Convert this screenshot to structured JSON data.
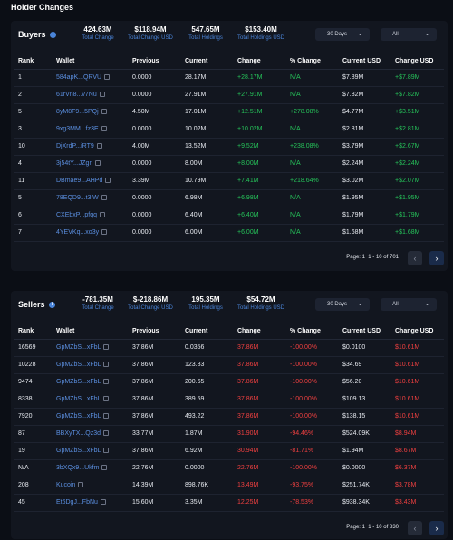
{
  "page_title": "Holder Changes",
  "columns": [
    "Rank",
    "Wallet",
    "Previous",
    "Current",
    "Change",
    "% Change",
    "Current USD",
    "Change USD"
  ],
  "icons": {
    "info": "info-icon",
    "copy": "copy-icon",
    "dropdown": "chevron-down-icon",
    "prev": "chevron-left-icon",
    "next": "chevron-right-icon"
  },
  "colors": {
    "positive": "#26c35a",
    "negative": "#f04040",
    "link": "#5b8fe0",
    "accent": "#4a84d8"
  },
  "buyers": {
    "title": "Buyers",
    "stats": [
      {
        "value": "424.63M",
        "label": "Total Change"
      },
      {
        "value": "$118.94M",
        "label": "Total Change USD"
      },
      {
        "value": "547.65M",
        "label": "Total Holdings"
      },
      {
        "value": "$153.40M",
        "label": "Total Holdings USD"
      }
    ],
    "period": "30 Days",
    "filter": "All",
    "rows": [
      {
        "rank": "1",
        "wallet": "584apK...QRVU",
        "previous": "0.0000",
        "current": "28.17M",
        "change": "+28.17M",
        "pct": "N/A",
        "usd": "$7.89M",
        "change_usd": "+$7.89M"
      },
      {
        "rank": "2",
        "wallet": "61rVn8...v7Nu",
        "previous": "0.0000",
        "current": "27.91M",
        "change": "+27.91M",
        "pct": "N/A",
        "usd": "$7.82M",
        "change_usd": "+$7.82M"
      },
      {
        "rank": "5",
        "wallet": "8yM8F9...5PQj",
        "previous": "4.50M",
        "current": "17.01M",
        "change": "+12.51M",
        "pct": "+278.08%",
        "usd": "$4.77M",
        "change_usd": "+$3.51M"
      },
      {
        "rank": "3",
        "wallet": "9xg3MM...fz3E",
        "previous": "0.0000",
        "current": "10.02M",
        "change": "+10.02M",
        "pct": "N/A",
        "usd": "$2.81M",
        "change_usd": "+$2.81M"
      },
      {
        "rank": "10",
        "wallet": "DjXrdP...iRT9",
        "previous": "4.00M",
        "current": "13.52M",
        "change": "+9.52M",
        "pct": "+238.08%",
        "usd": "$3.79M",
        "change_usd": "+$2.67M"
      },
      {
        "rank": "4",
        "wallet": "3j54tY...JZgn",
        "previous": "0.0000",
        "current": "8.00M",
        "change": "+8.00M",
        "pct": "N/A",
        "usd": "$2.24M",
        "change_usd": "+$2.24M"
      },
      {
        "rank": "11",
        "wallet": "DBmae9...AHPd",
        "previous": "3.39M",
        "current": "10.79M",
        "change": "+7.41M",
        "pct": "+218.64%",
        "usd": "$3.02M",
        "change_usd": "+$2.07M"
      },
      {
        "rank": "5",
        "wallet": "78EQD9...t3iW",
        "previous": "0.0000",
        "current": "6.98M",
        "change": "+6.98M",
        "pct": "N/A",
        "usd": "$1.95M",
        "change_usd": "+$1.95M"
      },
      {
        "rank": "6",
        "wallet": "CXEbxP...pfqq",
        "previous": "0.0000",
        "current": "6.40M",
        "change": "+6.40M",
        "pct": "N/A",
        "usd": "$1.79M",
        "change_usd": "+$1.79M"
      },
      {
        "rank": "7",
        "wallet": "4YEVKq...xo3y",
        "previous": "0.0000",
        "current": "6.00M",
        "change": "+6.00M",
        "pct": "N/A",
        "usd": "$1.68M",
        "change_usd": "+$1.68M"
      }
    ],
    "page_label": "Page: 1",
    "range_label": "1 - 10 of 701"
  },
  "sellers": {
    "title": "Sellers",
    "stats": [
      {
        "value": "-781.35M",
        "label": "Total Change"
      },
      {
        "value": "$-218.86M",
        "label": "Total Change USD"
      },
      {
        "value": "195.35M",
        "label": "Total Holdings"
      },
      {
        "value": "$54.72M",
        "label": "Total Holdings USD"
      }
    ],
    "period": "30 Days",
    "filter": "All",
    "rows": [
      {
        "rank": "16569",
        "wallet": "GpMZbS...xFbL",
        "previous": "37.86M",
        "current": "0.0356",
        "change": "37.86M",
        "pct": "-100.00%",
        "usd": "$0.0100",
        "change_usd": "$10.61M"
      },
      {
        "rank": "10228",
        "wallet": "GpMZbS...xFbL",
        "previous": "37.86M",
        "current": "123.83",
        "change": "37.86M",
        "pct": "-100.00%",
        "usd": "$34.69",
        "change_usd": "$10.61M"
      },
      {
        "rank": "9474",
        "wallet": "GpMZbS...xFbL",
        "previous": "37.86M",
        "current": "200.65",
        "change": "37.86M",
        "pct": "-100.00%",
        "usd": "$56.20",
        "change_usd": "$10.61M"
      },
      {
        "rank": "8338",
        "wallet": "GpMZbS...xFbL",
        "previous": "37.86M",
        "current": "389.59",
        "change": "37.86M",
        "pct": "-100.00%",
        "usd": "$109.13",
        "change_usd": "$10.61M"
      },
      {
        "rank": "7920",
        "wallet": "GpMZbS...xFbL",
        "previous": "37.86M",
        "current": "493.22",
        "change": "37.86M",
        "pct": "-100.00%",
        "usd": "$138.15",
        "change_usd": "$10.61M"
      },
      {
        "rank": "87",
        "wallet": "BBXyTX...Qz3d",
        "previous": "33.77M",
        "current": "1.87M",
        "change": "31.90M",
        "pct": "-94.46%",
        "usd": "$524.09K",
        "change_usd": "$8.94M"
      },
      {
        "rank": "19",
        "wallet": "GpMZbS...xFbL",
        "previous": "37.86M",
        "current": "6.92M",
        "change": "30.94M",
        "pct": "-81.71%",
        "usd": "$1.94M",
        "change_usd": "$8.67M"
      },
      {
        "rank": "N/A",
        "wallet": "3bXQx9...Ukfm",
        "previous": "22.76M",
        "current": "0.0000",
        "change": "22.76M",
        "pct": "-100.00%",
        "usd": "$0.0000",
        "change_usd": "$6.37M"
      },
      {
        "rank": "208",
        "wallet": "Kucoin",
        "previous": "14.39M",
        "current": "898.76K",
        "change": "13.49M",
        "pct": "-93.75%",
        "usd": "$251.74K",
        "change_usd": "$3.78M"
      },
      {
        "rank": "45",
        "wallet": "Et6DgJ...FbNu",
        "previous": "15.60M",
        "current": "3.35M",
        "change": "12.25M",
        "pct": "-78.53%",
        "usd": "$938.34K",
        "change_usd": "$3.43M"
      }
    ],
    "page_label": "Page: 1",
    "range_label": "1 - 10 of 830"
  }
}
